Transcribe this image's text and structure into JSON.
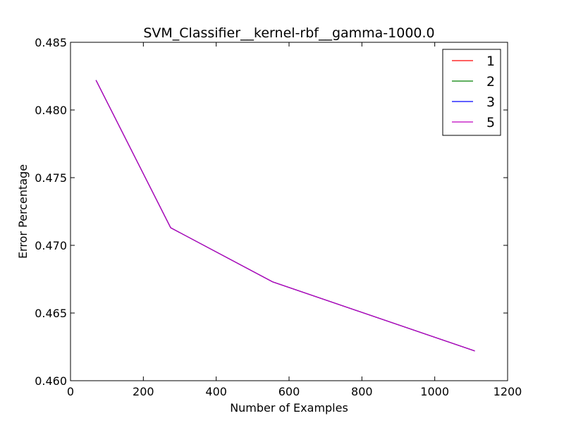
{
  "chart_data": {
    "type": "line",
    "title": "SVM_Classifier__kernel-rbf__gamma-1000.0",
    "xlabel": "Number of Examples",
    "ylabel": "Error Percentage",
    "xlim": [
      0,
      1200
    ],
    "ylim": [
      0.46,
      0.485
    ],
    "x_ticks": [
      0,
      200,
      400,
      600,
      800,
      1000,
      1200
    ],
    "y_ticks": [
      0.46,
      0.465,
      0.47,
      0.475,
      0.48,
      0.485
    ],
    "x_tick_labels": [
      "0",
      "200",
      "400",
      "600",
      "800",
      "1000",
      "1200"
    ],
    "y_tick_labels": [
      "0.460",
      "0.465",
      "0.470",
      "0.475",
      "0.480",
      "0.485"
    ],
    "grid": false,
    "legend_position": "top-right",
    "series": [
      {
        "name": "1",
        "color": "#ff0000",
        "x": [
          70,
          275,
          555,
          1110
        ],
        "y": [
          0.4822,
          0.4713,
          0.4673,
          0.4622
        ]
      },
      {
        "name": "2",
        "color": "#008000",
        "x": [
          70,
          275,
          555,
          1110
        ],
        "y": [
          0.4822,
          0.4713,
          0.4673,
          0.4622
        ]
      },
      {
        "name": "3",
        "color": "#0000ff",
        "x": [
          70,
          275,
          555,
          1110
        ],
        "y": [
          0.4822,
          0.4713,
          0.4673,
          0.4622
        ]
      },
      {
        "name": "5",
        "color": "#bf00bf",
        "x": [
          70,
          275,
          555,
          1110
        ],
        "y": [
          0.4822,
          0.4713,
          0.4673,
          0.4622
        ]
      }
    ]
  }
}
